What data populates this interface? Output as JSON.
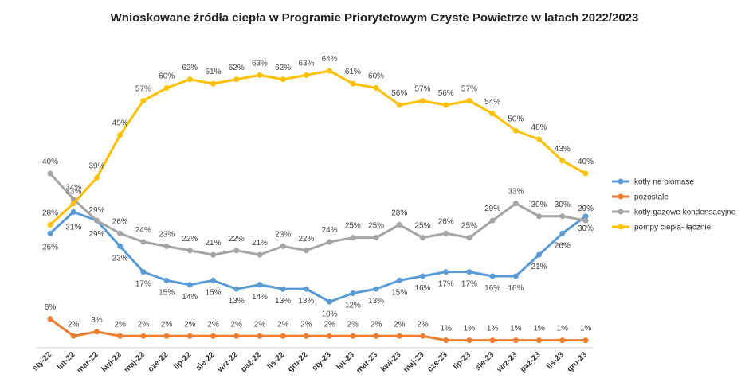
{
  "chart_data": {
    "type": "line",
    "title": "Wnioskowane źródła ciepła w Programie Priorytetowym Czyste Powietrze w latach 2022/2023",
    "categories": [
      "sty-22",
      "lut-22",
      "mar-22",
      "kwi-22",
      "maj-22",
      "cze-22",
      "lip-22",
      "sie-22",
      "wrz-22",
      "paź-22",
      "lis-22",
      "gru-22",
      "sty-23",
      "lut-23",
      "mar-23",
      "kwi-23",
      "maj-23",
      "cze-23",
      "lip-23",
      "sie-23",
      "wrz-23",
      "paź-23",
      "lis-23",
      "gru-23"
    ],
    "series": [
      {
        "name": "kotły na biomasę",
        "color": "#5b9bd5",
        "values": [
          26,
          31,
          29,
          23,
          17,
          15,
          14,
          15,
          13,
          14,
          13,
          13,
          10,
          12,
          13,
          15,
          16,
          17,
          17,
          16,
          16,
          21,
          26,
          30
        ],
        "value_labels": [
          "26%",
          "31%",
          "29%",
          "23%",
          "17%",
          "15%",
          "14%",
          "15%",
          "13%",
          "14%",
          "13%",
          "13%",
          "10%",
          "12%",
          "13%",
          "15%",
          "16%",
          "17%",
          "17%",
          "16%",
          "16%",
          "21%",
          "26%",
          "30%"
        ]
      },
      {
        "name": "pozostałe",
        "color": "#ed7d31",
        "values": [
          6,
          2,
          3,
          2,
          2,
          2,
          2,
          2,
          2,
          2,
          2,
          2,
          2,
          2,
          2,
          2,
          2,
          1,
          1,
          1,
          1,
          1,
          1,
          1
        ],
        "value_labels": [
          "6%",
          "2%",
          "3%",
          "2%",
          "2%",
          "2%",
          "2%",
          "2%",
          "2%",
          "2%",
          "2%",
          "2%",
          "2%",
          "2%",
          "2%",
          "2%",
          "2%",
          "1%",
          "1%",
          "1%",
          "1%",
          "1%",
          "1%",
          "1%"
        ]
      },
      {
        "name": "kotły gazowe kondensacyjne",
        "color": "#a5a5a5",
        "values": [
          40,
          34,
          29,
          26,
          24,
          23,
          22,
          21,
          22,
          21,
          23,
          22,
          24,
          25,
          25,
          28,
          25,
          26,
          25,
          29,
          33,
          30,
          30,
          29
        ],
        "value_labels": [
          "40%",
          "34%",
          "29%",
          "26%",
          "24%",
          "23%",
          "22%",
          "21%",
          "22%",
          "21%",
          "23%",
          "22%",
          "24%",
          "25%",
          "25%",
          "28%",
          "25%",
          "26%",
          "25%",
          "29%",
          "33%",
          "30%",
          "30%",
          "29%"
        ]
      },
      {
        "name": "pompy ciepła- łącznie",
        "color": "#ffc000",
        "values": [
          28,
          33,
          39,
          49,
          57,
          60,
          62,
          61,
          62,
          63,
          62,
          63,
          64,
          61,
          60,
          56,
          57,
          56,
          57,
          54,
          50,
          48,
          43,
          40
        ],
        "value_labels": [
          "28%",
          "33%",
          "39%",
          "49%",
          "57%",
          "60%",
          "62%",
          "61%",
          "62%",
          "63%",
          "62%",
          "63%",
          "64%",
          "61%",
          "60%",
          "56%",
          "57%",
          "56%",
          "57%",
          "54%",
          "50%",
          "48%",
          "43%",
          "40%"
        ]
      }
    ],
    "ylim": [
      0,
      70
    ],
    "xlabel": "",
    "ylabel": "",
    "grid": false,
    "legend": "right"
  }
}
